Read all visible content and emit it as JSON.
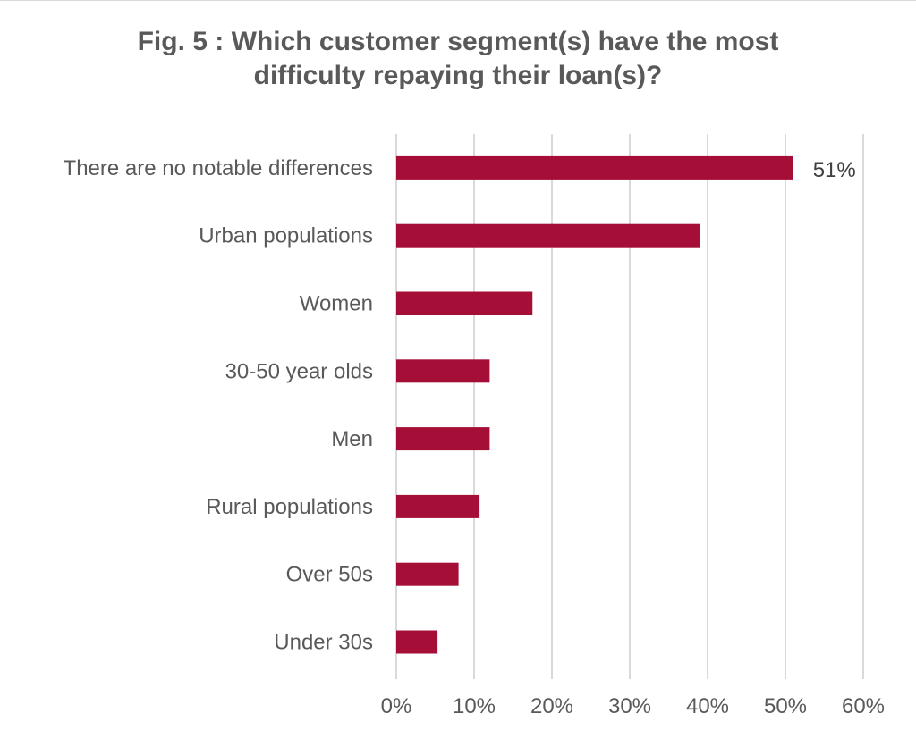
{
  "chart_data": {
    "type": "bar",
    "orientation": "horizontal",
    "title_lines": [
      "Fig. 5 : Which customer segment(s) have the most",
      "difficulty repaying their loan(s)?"
    ],
    "categories": [
      "There are no notable differences",
      "Urban populations",
      "Women",
      "30-50 year olds",
      "Men",
      "Rural populations",
      "Over 50s",
      "Under 30s"
    ],
    "values": [
      51,
      39,
      17.5,
      12,
      12,
      10.7,
      8,
      5.3
    ],
    "data_labels": [
      {
        "index": 0,
        "text": "51%"
      }
    ],
    "x_ticks": [
      "0%",
      "10%",
      "20%",
      "30%",
      "40%",
      "50%",
      "60%"
    ],
    "xlim": [
      0,
      60
    ],
    "grid": "vertical",
    "bar_color": "#a50f37",
    "grid_color": "#d9d9d9"
  }
}
